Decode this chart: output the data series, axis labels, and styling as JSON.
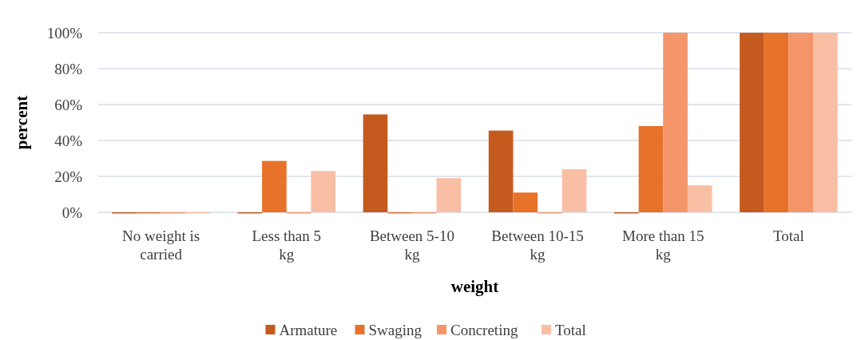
{
  "chart_data": {
    "type": "bar",
    "xlabel": "weight",
    "ylabel": "percent",
    "categories": [
      "No weight is carried",
      "Less than 5 kg",
      "Between 5-10 kg",
      "Between 10-15 kg",
      "More than 15 kg",
      "Total"
    ],
    "series": [
      {
        "name": "Armature",
        "color": "#c55a1e",
        "values": [
          0,
          0,
          54.5,
          45.5,
          0,
          100
        ]
      },
      {
        "name": "Swaging",
        "color": "#e8722a",
        "values": [
          0,
          28.6,
          0,
          11,
          48,
          100
        ]
      },
      {
        "name": "Concreting",
        "color": "#f4956a",
        "values": [
          0,
          0,
          0,
          0,
          100,
          100
        ]
      },
      {
        "name": "Total",
        "color": "#f9bfa5",
        "values": [
          0,
          23,
          19,
          24,
          15,
          100
        ]
      }
    ],
    "ylim": [
      0,
      100
    ],
    "yticks": [
      {
        "value": 0,
        "label": "0%"
      },
      {
        "value": 20,
        "label": "20%"
      },
      {
        "value": 40,
        "label": "40%"
      },
      {
        "value": 60,
        "label": "60%"
      },
      {
        "value": 80,
        "label": "80%"
      },
      {
        "value": 100,
        "label": "100%"
      }
    ],
    "grid": "y",
    "legend": "bottom"
  }
}
